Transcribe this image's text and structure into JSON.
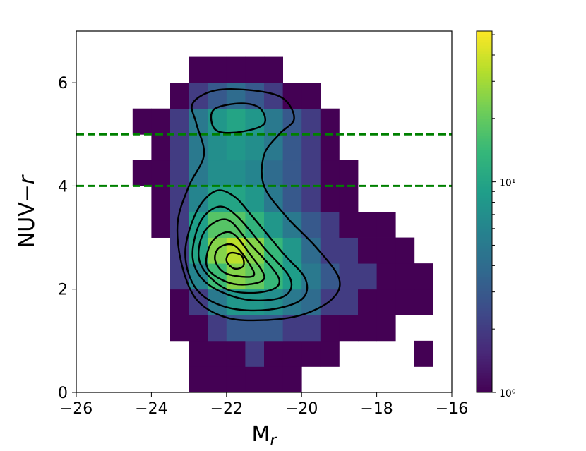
{
  "chart_data": {
    "type": "hist2d",
    "xlabel": [
      "M",
      "r"
    ],
    "ylabel": [
      "NUV−",
      "r"
    ],
    "xlim": [
      -26,
      -16
    ],
    "ylim": [
      0,
      7
    ],
    "xticks": [
      {
        "value": -26,
        "label": "−26"
      },
      {
        "value": -24,
        "label": "−24"
      },
      {
        "value": -22,
        "label": "−22"
      },
      {
        "value": -20,
        "label": "−20"
      },
      {
        "value": -18,
        "label": "−18"
      },
      {
        "value": -16,
        "label": "−16"
      }
    ],
    "yticks": [
      0,
      2,
      4,
      6
    ],
    "x_edges": [
      -25,
      -24.5,
      -24,
      -23.5,
      -23,
      -22.5,
      -22,
      -21.5,
      -21,
      -20.5,
      -20,
      -19.5,
      -19,
      -18.5,
      -18,
      -17.5,
      -17,
      -16.5
    ],
    "y_edges": [
      0,
      0.5,
      1,
      1.5,
      2,
      2.5,
      3,
      3.5,
      4,
      4.5,
      5,
      5.5,
      6,
      6.5
    ],
    "counts": [
      [
        0,
        0,
        0,
        0,
        1,
        1,
        1,
        1,
        1,
        1,
        0,
        0,
        0,
        0,
        0,
        0,
        0
      ],
      [
        0,
        0,
        0,
        0,
        1,
        1,
        1,
        2,
        1,
        1,
        1,
        1,
        0,
        0,
        0,
        0,
        1
      ],
      [
        0,
        0,
        0,
        1,
        1,
        2,
        3,
        3,
        3,
        2,
        2,
        1,
        1,
        1,
        1,
        0,
        0
      ],
      [
        0,
        0,
        0,
        1,
        2,
        5,
        8,
        8,
        7,
        5,
        4,
        2,
        2,
        1,
        1,
        1,
        1
      ],
      [
        0,
        0,
        0,
        2,
        6,
        15,
        25,
        20,
        14,
        9,
        5,
        3,
        2,
        2,
        1,
        1,
        1
      ],
      [
        0,
        0,
        0,
        2,
        10,
        25,
        35,
        25,
        14,
        8,
        4,
        2,
        2,
        1,
        1,
        1,
        0
      ],
      [
        0,
        0,
        1,
        2,
        9,
        18,
        18,
        13,
        8,
        5,
        3,
        2,
        1,
        1,
        1,
        0,
        0
      ],
      [
        0,
        0,
        1,
        2,
        6,
        10,
        10,
        8,
        5,
        3,
        2,
        1,
        1,
        0,
        0,
        0,
        0
      ],
      [
        0,
        1,
        1,
        2,
        5,
        7,
        7,
        6,
        4,
        3,
        2,
        1,
        1,
        0,
        0,
        0,
        0
      ],
      [
        0,
        0,
        1,
        2,
        5,
        7,
        8,
        7,
        5,
        3,
        2,
        1,
        0,
        0,
        0,
        0,
        0
      ],
      [
        0,
        1,
        1,
        2,
        5,
        8,
        10,
        8,
        5,
        3,
        2,
        1,
        0,
        0,
        0,
        0,
        0
      ],
      [
        0,
        0,
        0,
        1,
        2,
        3,
        4,
        3,
        2,
        1,
        1,
        0,
        0,
        0,
        0,
        0,
        0
      ],
      [
        0,
        0,
        0,
        0,
        1,
        1,
        1,
        1,
        1,
        0,
        0,
        0,
        0,
        0,
        0,
        0,
        0
      ]
    ],
    "colormap": "viridis",
    "color_scale": "log",
    "clim": [
      1,
      52
    ],
    "cticks": [
      {
        "value": 1,
        "label": "10⁰"
      },
      {
        "value": 10,
        "label": "10¹"
      }
    ],
    "cticks_minor": [
      2,
      3,
      4,
      5,
      6,
      7,
      8,
      9,
      20,
      30,
      40,
      50
    ],
    "contour_color": "#000000",
    "contours": [
      {
        "x": [
          -22.9,
          -22.3,
          -21.3,
          -20.5,
          -20.2,
          -20.6,
          -21.0,
          -21.0,
          -20.4,
          -19.6,
          -19.0,
          -19.2,
          -20.0,
          -21.0,
          -22.0,
          -22.8,
          -23.2,
          -23.3,
          -23.0,
          -22.6,
          -22.8
        ],
        "y": [
          5.6,
          5.85,
          5.85,
          5.7,
          5.3,
          5.0,
          4.6,
          4.0,
          3.4,
          2.8,
          2.2,
          1.8,
          1.5,
          1.4,
          1.45,
          1.8,
          2.5,
          3.3,
          4.0,
          4.6,
          5.2
        ]
      },
      {
        "x": [
          -22.3,
          -21.6,
          -21.1,
          -21.0,
          -21.6,
          -22.2,
          -22.4
        ],
        "y": [
          5.5,
          5.6,
          5.5,
          5.2,
          5.05,
          5.05,
          5.25
        ]
      },
      {
        "x": [
          -22.8,
          -22.3,
          -21.8,
          -21.3,
          -20.5,
          -19.9,
          -20.0,
          -20.9,
          -22.0,
          -22.8,
          -23.1
        ],
        "y": [
          3.5,
          3.9,
          3.8,
          3.4,
          2.7,
          2.2,
          1.8,
          1.6,
          1.65,
          2.0,
          2.7
        ]
      },
      {
        "x": [
          -22.7,
          -22.2,
          -21.7,
          -21.0,
          -20.3,
          -20.5,
          -21.5,
          -22.5,
          -22.9
        ],
        "y": [
          3.3,
          3.6,
          3.4,
          2.8,
          2.2,
          1.85,
          1.8,
          2.1,
          2.6
        ]
      },
      {
        "x": [
          -22.6,
          -22.0,
          -21.4,
          -20.6,
          -21.0,
          -22.0,
          -22.7
        ],
        "y": [
          3.1,
          3.35,
          2.9,
          2.2,
          1.95,
          2.0,
          2.5
        ]
      },
      {
        "x": [
          -22.4,
          -21.9,
          -21.4,
          -21.0,
          -21.8,
          -22.5
        ],
        "y": [
          2.9,
          3.1,
          2.7,
          2.2,
          2.1,
          2.4
        ]
      },
      {
        "x": [
          -22.2,
          -21.8,
          -21.4,
          -21.3,
          -22.0,
          -22.3
        ],
        "y": [
          2.8,
          2.85,
          2.5,
          2.25,
          2.3,
          2.55
        ]
      },
      {
        "x": [
          -21.9,
          -21.6,
          -21.55,
          -21.8,
          -22.0
        ],
        "y": [
          2.7,
          2.65,
          2.45,
          2.4,
          2.55
        ]
      }
    ],
    "hlines": [
      4,
      5
    ],
    "hline_color": "#008000"
  }
}
